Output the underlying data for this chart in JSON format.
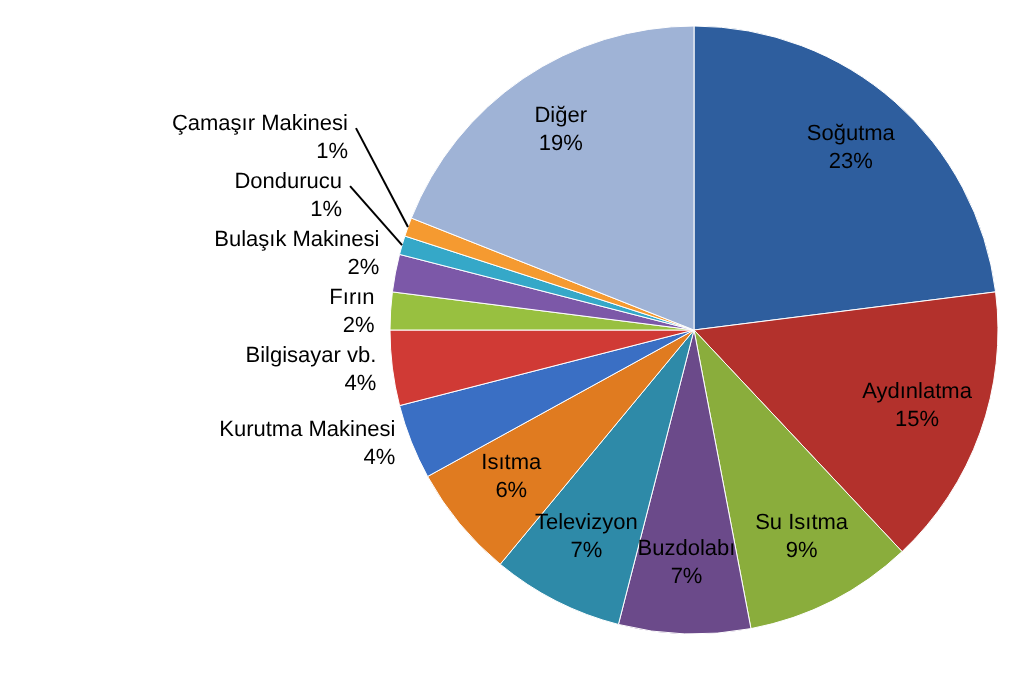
{
  "chart_data": {
    "type": "pie",
    "categories": [
      "Soğutma",
      "Aydınlatma",
      "Su Isıtma",
      "Buzdolabı",
      "Televizyon",
      "Isıtma",
      "Kurutma Makinesi",
      "Bilgisayar vb.",
      "Fırın",
      "Bulaşık Makinesi",
      "Dondurucu",
      "Çamaşır Makinesi",
      "Diğer"
    ],
    "values": [
      23,
      15,
      9,
      7,
      7,
      6,
      4,
      4,
      2,
      2,
      1,
      1,
      19
    ],
    "value_labels": [
      "23%",
      "15%",
      "9%",
      "7%",
      "7%",
      "6%",
      "4%",
      "4%",
      "2%",
      "2%",
      "1%",
      "1%",
      "19%"
    ],
    "colors": [
      "#2e5e9e",
      "#b3312c",
      "#8aad3c",
      "#6b4a8a",
      "#2e8aa8",
      "#e07b20",
      "#3a6fc4",
      "#d03a35",
      "#98c040",
      "#7c58a8",
      "#35a8c8",
      "#f59a30",
      "#9fb3d6"
    ],
    "legend": false
  }
}
